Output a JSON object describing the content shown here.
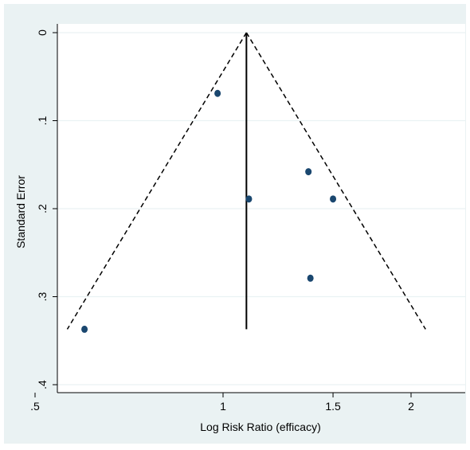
{
  "chart_data": {
    "type": "scatter",
    "subtype": "funnel",
    "xlabel": "Log Risk Ratio (efficacy)",
    "ylabel": "Standard Error",
    "xscale": "log",
    "xlim": [
      0.5,
      2.1
    ],
    "ylim": [
      0.4,
      0
    ],
    "y_reversed": true,
    "x_ticks": [
      {
        "value": 0.5,
        "label": ".5"
      },
      {
        "value": 1,
        "label": "1"
      },
      {
        "value": 1.5,
        "label": "1.5"
      },
      {
        "value": 2,
        "label": "2"
      }
    ],
    "y_ticks": [
      {
        "value": 0,
        "label": "0"
      },
      {
        "value": 0.1,
        "label": ".1"
      },
      {
        "value": 0.2,
        "label": ".2"
      },
      {
        "value": 0.3,
        "label": ".3"
      },
      {
        "value": 0.4,
        "label": ".4"
      }
    ],
    "grid": "horizontal",
    "points": [
      {
        "x": 0.98,
        "y": 0.069
      },
      {
        "x": 1.37,
        "y": 0.158
      },
      {
        "x": 1.1,
        "y": 0.189
      },
      {
        "x": 1.5,
        "y": 0.189
      },
      {
        "x": 1.38,
        "y": 0.279
      },
      {
        "x": 0.6,
        "y": 0.337
      }
    ],
    "pooled_estimate": 1.09,
    "funnel": {
      "se_max": 0.337,
      "z": 1.96
    },
    "colors": {
      "point": "#1a476f",
      "background": "#eaf2f3",
      "plot_background": "#ffffff",
      "grid": "#eaf2f3"
    }
  }
}
